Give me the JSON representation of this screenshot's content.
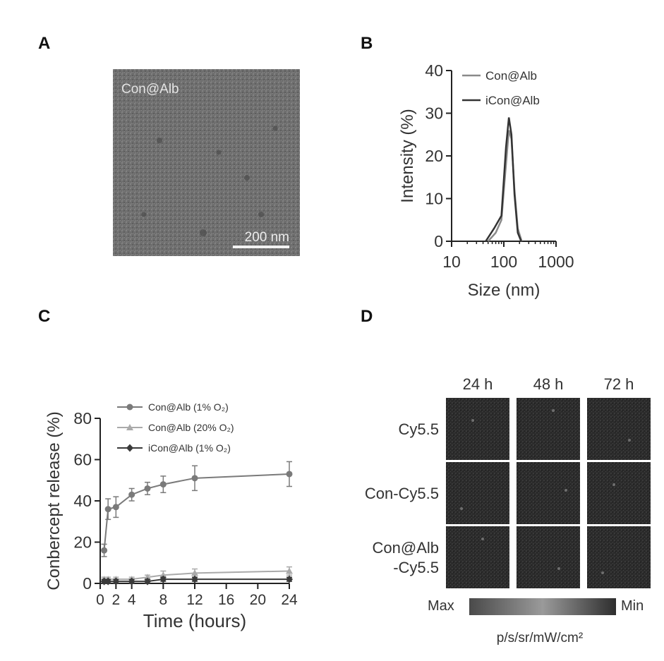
{
  "panels": {
    "A": {
      "label": "A",
      "overlay_label": "Con@Alb",
      "scale_bar": "200 nm"
    },
    "B": {
      "label": "B"
    },
    "C": {
      "label": "C"
    },
    "D": {
      "label": "D",
      "columns": [
        "24 h",
        "48 h",
        "72 h"
      ],
      "rows": [
        [
          "Cy5.5"
        ],
        [
          "Con-Cy5.5"
        ],
        [
          "Con@Alb",
          "-Cy5.5"
        ]
      ],
      "colorbar": {
        "max_label": "Max",
        "min_label": "Min",
        "unit": "p/s/sr/mW/cm²"
      }
    }
  },
  "chart_data": [
    {
      "panel": "B",
      "type": "line",
      "xlabel": "Size (nm)",
      "ylabel": "Intensity (%)",
      "xscale": "log",
      "xlim": [
        10,
        1000
      ],
      "ylim": [
        0,
        40
      ],
      "xticks": [
        10,
        100,
        1000
      ],
      "xtick_labels": [
        "10",
        "100",
        "1000"
      ],
      "yticks": [
        0,
        10,
        20,
        30,
        40
      ],
      "ytick_labels": [
        "0",
        "10",
        "20",
        "30",
        "40"
      ],
      "legend": "top-right",
      "series": [
        {
          "name": "Con@Alb",
          "color": "#8a8a8a",
          "x": [
            50,
            70,
            90,
            110,
            125,
            140,
            160,
            185,
            220
          ],
          "y": [
            0,
            2,
            5,
            18,
            26,
            24,
            12,
            3,
            0
          ]
        },
        {
          "name": "iCon@Alb",
          "color": "#333333",
          "x": [
            45,
            65,
            90,
            110,
            125,
            140,
            160,
            185,
            215
          ],
          "y": [
            0,
            3,
            6,
            22,
            29,
            25,
            11,
            2,
            0
          ]
        }
      ]
    },
    {
      "panel": "C",
      "type": "line",
      "xlabel": "Time (hours)",
      "ylabel": "Conbercept release (%)",
      "xlim": [
        0,
        24
      ],
      "ylim": [
        0,
        80
      ],
      "xticks": [
        0,
        2,
        4,
        8,
        12,
        16,
        20,
        24
      ],
      "xtick_labels": [
        "0",
        "2",
        "4",
        "8",
        "12",
        "16",
        "20",
        "24"
      ],
      "yticks": [
        0,
        20,
        40,
        60,
        80
      ],
      "ytick_labels": [
        "0",
        "20",
        "40",
        "60",
        "80"
      ],
      "legend": "top-left",
      "series": [
        {
          "name": "Con@Alb (1% O₂)",
          "color": "#7a7a7a",
          "x": [
            0.5,
            1,
            2,
            4,
            6,
            8,
            12,
            24
          ],
          "y": [
            16,
            36,
            37,
            43,
            46,
            48,
            51,
            53
          ],
          "err": [
            3,
            5,
            5,
            3,
            3,
            4,
            6,
            6
          ]
        },
        {
          "name": "Con@Alb (20% O₂)",
          "color": "#aaaaaa",
          "x": [
            0.5,
            1,
            2,
            4,
            6,
            8,
            12,
            24
          ],
          "y": [
            2,
            2,
            2,
            2,
            3,
            4,
            5,
            6
          ],
          "err": [
            1,
            1,
            1,
            1,
            1,
            2,
            2,
            2
          ]
        },
        {
          "name": "iCon@Alb (1% O₂)",
          "color": "#3a3a3a",
          "x": [
            0.5,
            1,
            2,
            4,
            6,
            8,
            12,
            24
          ],
          "y": [
            1,
            1,
            1,
            1,
            1,
            2,
            2,
            2
          ],
          "err": [
            1,
            1,
            1,
            1,
            1,
            1,
            1,
            1
          ]
        }
      ]
    }
  ]
}
